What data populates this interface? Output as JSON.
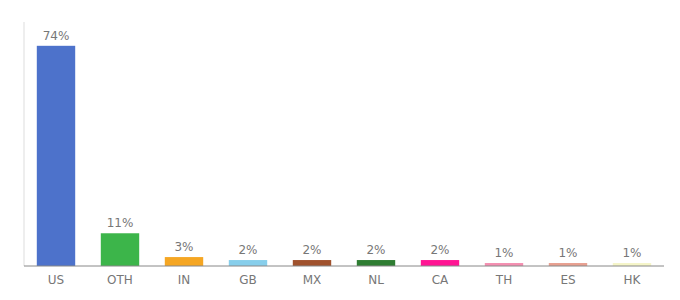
{
  "chart_data": {
    "type": "bar",
    "categories": [
      "US",
      "OTH",
      "IN",
      "GB",
      "MX",
      "NL",
      "CA",
      "TH",
      "ES",
      "HK"
    ],
    "values": [
      74,
      11,
      3,
      2,
      2,
      2,
      2,
      1,
      1,
      1
    ],
    "value_labels": [
      "74%",
      "11%",
      "3%",
      "2%",
      "2%",
      "2%",
      "2%",
      "1%",
      "1%",
      "1%"
    ],
    "colors": [
      "#4d72cb",
      "#3cb54a",
      "#f5a623",
      "#87ceeb",
      "#a0522d",
      "#2e7d32",
      "#ff1493",
      "#f48fb1",
      "#e8a090",
      "#f5f5c8"
    ],
    "ylim": [
      0,
      82
    ],
    "data_labels": true,
    "tick_labels": "x",
    "grid": false
  }
}
